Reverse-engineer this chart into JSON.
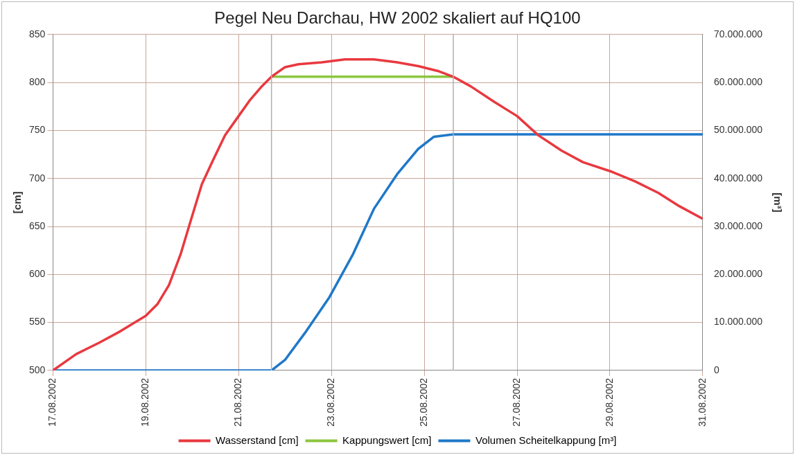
{
  "chart_data": {
    "type": "line",
    "title": "Pegel Neu Darchau, HW 2002 skaliert auf HQ100",
    "ylabel": "[cm]",
    "y2label": "[m³]",
    "xlim": [
      "2002-08-17",
      "2002-08-31"
    ],
    "xticks": [
      {
        "value": "2002-08-17",
        "label": "17.08.2002"
      },
      {
        "value": "2002-08-19",
        "label": "19.08.2002"
      },
      {
        "value": "2002-08-21",
        "label": "21.08.2002"
      },
      {
        "value": "2002-08-23",
        "label": "23.08.2002"
      },
      {
        "value": "2002-08-25",
        "label": "25.08.2002"
      },
      {
        "value": "2002-08-27",
        "label": "27.08.2002"
      },
      {
        "value": "2002-08-29",
        "label": "29.08.2002"
      },
      {
        "value": "2002-08-31",
        "label": "31.08.2002"
      }
    ],
    "ylim": [
      500,
      850
    ],
    "yticks": [
      500,
      550,
      600,
      650,
      700,
      750,
      800,
      850
    ],
    "y2lim": [
      0,
      70000000
    ],
    "y2ticks": [
      0,
      {
        "value": 10000000,
        "label": "10.000.000"
      },
      {
        "value": 20000000,
        "label": "20.000.000"
      },
      {
        "value": 30000000,
        "label": "30.000.000"
      },
      {
        "value": 40000000,
        "label": "40.000.000"
      },
      {
        "value": 50000000,
        "label": "50.000.000"
      },
      {
        "value": 60000000,
        "label": "60.000.000"
      },
      {
        "value": 70000000,
        "label": "70.000.000"
      }
    ],
    "grid": true,
    "legend": "bottom",
    "marker": "none",
    "ref_lines": [
      {
        "axis": "x",
        "value": "2002-08-21T17:00",
        "color": "#b0b0b0"
      },
      {
        "axis": "x",
        "value": "2002-08-25T15:00",
        "color": "#b0b0b0"
      }
    ],
    "series": [
      {
        "name": "Wasserstand [cm]",
        "color": "#e8393f",
        "x": [
          "2002-08-17T00:00",
          "2002-08-17T12:00",
          "2002-08-18T00:00",
          "2002-08-18T11:00",
          "2002-08-19T00:00",
          "2002-08-19T06:00",
          "2002-08-19T12:00",
          "2002-08-19T18:00",
          "2002-08-20T00:00",
          "2002-08-20T05:00",
          "2002-08-20T11:00",
          "2002-08-20T17:00",
          "2002-08-21T00:00",
          "2002-08-21T06:00",
          "2002-08-21T12:00",
          "2002-08-21T17:00",
          "2002-08-22T00:00",
          "2002-08-22T07:00",
          "2002-08-22T19:00",
          "2002-08-23T07:00",
          "2002-08-23T22:00",
          "2002-08-24T10:00",
          "2002-08-24T21:00",
          "2002-08-25T07:00",
          "2002-08-25T15:00",
          "2002-08-26T00:00",
          "2002-08-26T12:00",
          "2002-08-27T00:00",
          "2002-08-27T11:00",
          "2002-08-27T23:00",
          "2002-08-28T10:00",
          "2002-08-29T01:00",
          "2002-08-29T13:00",
          "2002-08-30T01:00",
          "2002-08-30T12:00",
          "2002-08-31T00:00"
        ],
        "values": [
          500,
          517,
          529,
          541,
          557,
          569,
          589,
          621,
          661,
          694,
          720,
          745,
          765,
          782,
          796,
          806,
          816,
          819,
          821,
          824,
          824,
          821,
          817,
          812,
          806,
          796,
          780,
          765,
          745,
          729,
          717,
          707,
          697,
          685,
          671,
          658
        ]
      },
      {
        "name": "Kappungswert [cm]",
        "color": "#8cc63f",
        "x": [
          "2002-08-21T17:00",
          "2002-08-25T15:00"
        ],
        "values": [
          806,
          806
        ]
      },
      {
        "name": "Volumen Scheitelkappung [m³]",
        "color": "#1f78c8",
        "axis": "y2",
        "x": [
          "2002-08-17T00:00",
          "2002-08-21T17:00",
          "2002-08-22T00:00",
          "2002-08-22T11:00",
          "2002-08-22T23:00",
          "2002-08-23T11:00",
          "2002-08-23T22:00",
          "2002-08-24T10:00",
          "2002-08-24T21:00",
          "2002-08-25T05:00",
          "2002-08-25T15:00",
          "2002-08-31T00:00"
        ],
        "values": [
          0,
          0,
          2200000,
          8200000,
          15300000,
          24100000,
          33700000,
          40900000,
          46200000,
          48700000,
          49200000,
          49200000
        ]
      }
    ]
  }
}
